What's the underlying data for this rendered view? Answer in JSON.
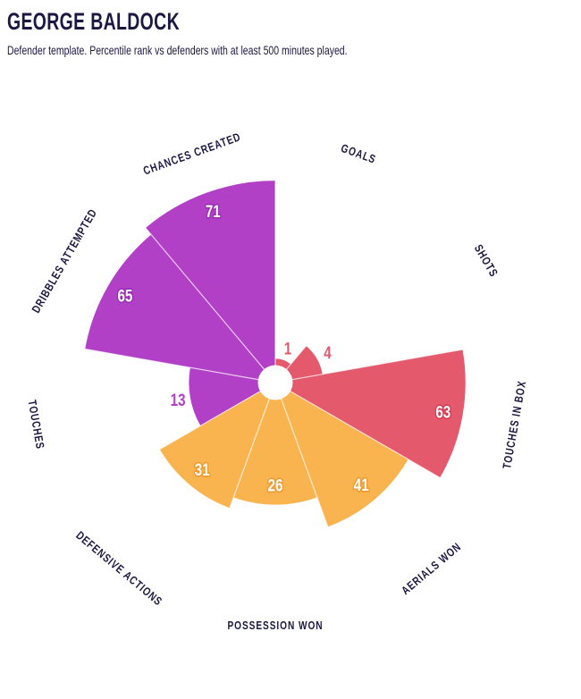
{
  "header": {
    "title": "GEORGE BALDOCK",
    "subtitle": "Defender template. Percentile rank vs defenders with at least 500 minutes played."
  },
  "colors": {
    "background": "#FFFFFF",
    "text": "#1D1843",
    "divider": "rgba(255,255,255,0.7)"
  },
  "chart_data": {
    "type": "polar-bar-pizza",
    "title": "GEORGE BALDOCK",
    "subtitle": "Defender template. Percentile rank vs defenders with at least 500 minutes played.",
    "max_value": 100,
    "scale": "sqrt",
    "start_angle_deg": 0,
    "sector_deg": 40,
    "categories": [
      "GOALS",
      "SHOTS",
      "TOUCHES IN BOX",
      "AERIALS WON",
      "POSSESSION WON",
      "DEFENSIVE ACTIONS",
      "TOUCHES",
      "DRIBBLES ATTEMPTED",
      "CHANCES CREATED"
    ],
    "values": [
      1,
      4,
      63,
      41,
      26,
      31,
      13,
      65,
      71
    ],
    "color_key": [
      "red",
      "red",
      "red",
      "orange",
      "orange",
      "orange",
      "purple",
      "purple",
      "purple"
    ],
    "palette": {
      "red": "#E4596C",
      "orange": "#F9B450",
      "purple": "#B140C7"
    },
    "outline_palette": {
      "red": "#D63A52",
      "orange": "#F0992C",
      "purple": "#9A2DB3"
    },
    "legend": "none",
    "grid": "off"
  }
}
